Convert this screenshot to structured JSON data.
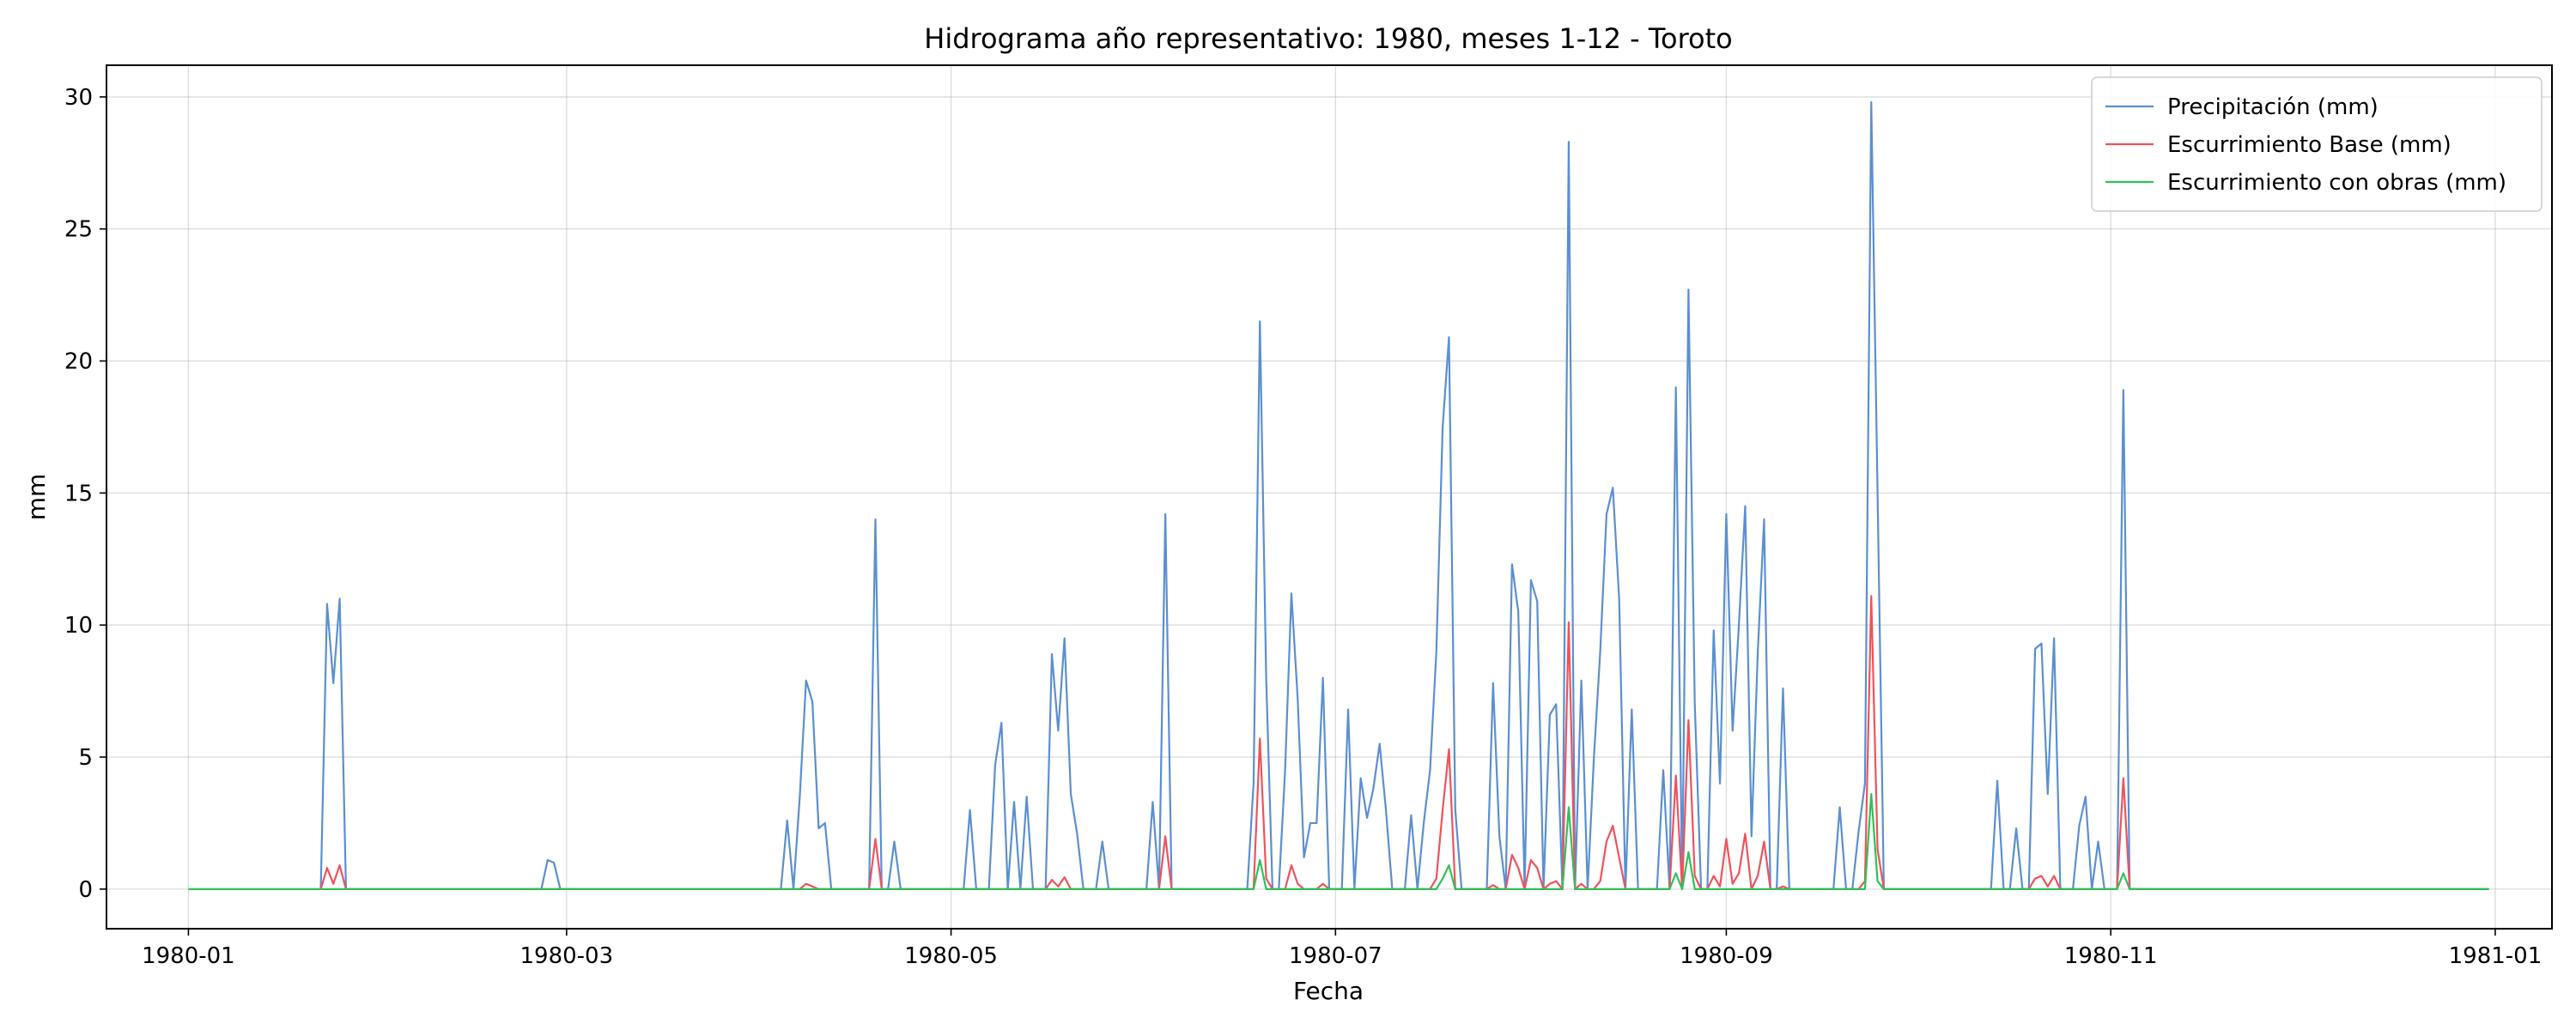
{
  "chart_data": {
    "type": "line",
    "title": "Hidrograma año representativo: 1980, meses 1-12 - Toroto",
    "xlabel": "Fecha",
    "ylabel": "mm",
    "x_domain": [
      "1980-01-01",
      "1980-12-31"
    ],
    "xlim": [
      "1979-12-19",
      "1981-01-10"
    ],
    "ylim": [
      -1.5,
      31.2
    ],
    "x_ticks": [
      "1980-01",
      "1980-03",
      "1980-05",
      "1980-07",
      "1980-09",
      "1980-11",
      "1981-01"
    ],
    "y_ticks": [
      0,
      5,
      10,
      15,
      20,
      25,
      30
    ],
    "grid": true,
    "legend_position": "upper-right",
    "series": [
      {
        "name": "Precipitación (mm)",
        "color": "#5b8fd1",
        "points": [
          [
            "1980-01-22",
            0
          ],
          [
            "1980-01-23",
            10.8
          ],
          [
            "1980-01-24",
            7.8
          ],
          [
            "1980-01-25",
            11.0
          ],
          [
            "1980-01-26",
            0
          ],
          [
            "1980-02-26",
            0
          ],
          [
            "1980-02-27",
            1.1
          ],
          [
            "1980-02-28",
            1.0
          ],
          [
            "1980-02-29",
            0
          ],
          [
            "1980-04-04",
            0
          ],
          [
            "1980-04-05",
            2.6
          ],
          [
            "1980-04-06",
            0
          ],
          [
            "1980-04-07",
            3.5
          ],
          [
            "1980-04-08",
            7.9
          ],
          [
            "1980-04-09",
            7.1
          ],
          [
            "1980-04-10",
            2.3
          ],
          [
            "1980-04-11",
            2.5
          ],
          [
            "1980-04-12",
            0
          ],
          [
            "1980-04-18",
            0
          ],
          [
            "1980-04-19",
            14.0
          ],
          [
            "1980-04-20",
            0
          ],
          [
            "1980-04-21",
            0
          ],
          [
            "1980-04-22",
            1.8
          ],
          [
            "1980-04-23",
            0
          ],
          [
            "1980-05-03",
            0
          ],
          [
            "1980-05-04",
            3.0
          ],
          [
            "1980-05-05",
            0
          ],
          [
            "1980-05-07",
            0
          ],
          [
            "1980-05-08",
            4.7
          ],
          [
            "1980-05-09",
            6.3
          ],
          [
            "1980-05-10",
            0
          ],
          [
            "1980-05-11",
            3.3
          ],
          [
            "1980-05-12",
            0
          ],
          [
            "1980-05-13",
            3.5
          ],
          [
            "1980-05-14",
            0
          ],
          [
            "1980-05-16",
            0
          ],
          [
            "1980-05-17",
            8.9
          ],
          [
            "1980-05-18",
            6.0
          ],
          [
            "1980-05-19",
            9.5
          ],
          [
            "1980-05-20",
            3.6
          ],
          [
            "1980-05-21",
            2.1
          ],
          [
            "1980-05-22",
            0
          ],
          [
            "1980-05-24",
            0
          ],
          [
            "1980-05-25",
            1.8
          ],
          [
            "1980-05-26",
            0
          ],
          [
            "1980-06-01",
            0
          ],
          [
            "1980-06-02",
            3.3
          ],
          [
            "1980-06-03",
            0
          ],
          [
            "1980-06-04",
            14.2
          ],
          [
            "1980-06-05",
            0
          ],
          [
            "1980-06-17",
            0
          ],
          [
            "1980-06-18",
            4.0
          ],
          [
            "1980-06-19",
            21.5
          ],
          [
            "1980-06-20",
            8.0
          ],
          [
            "1980-06-21",
            0
          ],
          [
            "1980-06-22",
            0
          ],
          [
            "1980-06-23",
            4.5
          ],
          [
            "1980-06-24",
            11.2
          ],
          [
            "1980-06-25",
            7.2
          ],
          [
            "1980-06-26",
            1.2
          ],
          [
            "1980-06-27",
            2.5
          ],
          [
            "1980-06-28",
            2.5
          ],
          [
            "1980-06-29",
            8.0
          ],
          [
            "1980-06-30",
            0
          ],
          [
            "1980-07-01",
            0
          ],
          [
            "1980-07-02",
            0
          ],
          [
            "1980-07-03",
            6.8
          ],
          [
            "1980-07-04",
            0
          ],
          [
            "1980-07-05",
            4.2
          ],
          [
            "1980-07-06",
            2.7
          ],
          [
            "1980-07-07",
            3.8
          ],
          [
            "1980-07-08",
            5.5
          ],
          [
            "1980-07-09",
            3.0
          ],
          [
            "1980-07-10",
            0
          ],
          [
            "1980-07-12",
            0
          ],
          [
            "1980-07-13",
            2.8
          ],
          [
            "1980-07-14",
            0
          ],
          [
            "1980-07-15",
            2.5
          ],
          [
            "1980-07-16",
            4.5
          ],
          [
            "1980-07-17",
            9.0
          ],
          [
            "1980-07-18",
            17.5
          ],
          [
            "1980-07-19",
            20.9
          ],
          [
            "1980-07-20",
            3.0
          ],
          [
            "1980-07-21",
            0
          ],
          [
            "1980-07-25",
            0
          ],
          [
            "1980-07-26",
            7.8
          ],
          [
            "1980-07-27",
            2.0
          ],
          [
            "1980-07-28",
            0
          ],
          [
            "1980-07-29",
            12.3
          ],
          [
            "1980-07-30",
            10.5
          ],
          [
            "1980-07-31",
            0
          ],
          [
            "1980-08-01",
            11.7
          ],
          [
            "1980-08-02",
            10.9
          ],
          [
            "1980-08-03",
            0
          ],
          [
            "1980-08-04",
            6.6
          ],
          [
            "1980-08-05",
            7.0
          ],
          [
            "1980-08-06",
            0
          ],
          [
            "1980-08-07",
            28.3
          ],
          [
            "1980-08-08",
            0
          ],
          [
            "1980-08-09",
            7.9
          ],
          [
            "1980-08-10",
            0
          ],
          [
            "1980-08-11",
            5.0
          ],
          [
            "1980-08-12",
            9.0
          ],
          [
            "1980-08-13",
            14.2
          ],
          [
            "1980-08-14",
            15.2
          ],
          [
            "1980-08-15",
            11.0
          ],
          [
            "1980-08-16",
            0
          ],
          [
            "1980-08-17",
            6.8
          ],
          [
            "1980-08-18",
            0
          ],
          [
            "1980-08-21",
            0
          ],
          [
            "1980-08-22",
            4.5
          ],
          [
            "1980-08-23",
            0
          ],
          [
            "1980-08-24",
            19.0
          ],
          [
            "1980-08-25",
            0
          ],
          [
            "1980-08-26",
            22.7
          ],
          [
            "1980-08-27",
            7.0
          ],
          [
            "1980-08-28",
            0
          ],
          [
            "1980-08-29",
            0
          ],
          [
            "1980-08-30",
            9.8
          ],
          [
            "1980-08-31",
            4.0
          ],
          [
            "1980-09-01",
            14.2
          ],
          [
            "1980-09-02",
            6.0
          ],
          [
            "1980-09-03",
            10.0
          ],
          [
            "1980-09-04",
            14.5
          ],
          [
            "1980-09-05",
            2.0
          ],
          [
            "1980-09-06",
            9.0
          ],
          [
            "1980-09-07",
            14.0
          ],
          [
            "1980-09-08",
            0
          ],
          [
            "1980-09-09",
            0
          ],
          [
            "1980-09-10",
            7.6
          ],
          [
            "1980-09-11",
            0
          ],
          [
            "1980-09-18",
            0
          ],
          [
            "1980-09-19",
            3.1
          ],
          [
            "1980-09-20",
            0
          ],
          [
            "1980-09-21",
            0
          ],
          [
            "1980-09-22",
            2.2
          ],
          [
            "1980-09-23",
            4.0
          ],
          [
            "1980-09-24",
            29.8
          ],
          [
            "1980-09-25",
            15.0
          ],
          [
            "1980-09-26",
            0
          ],
          [
            "1980-10-13",
            0
          ],
          [
            "1980-10-14",
            4.1
          ],
          [
            "1980-10-15",
            0
          ],
          [
            "1980-10-16",
            0
          ],
          [
            "1980-10-17",
            2.3
          ],
          [
            "1980-10-18",
            0
          ],
          [
            "1980-10-19",
            0
          ],
          [
            "1980-10-20",
            9.1
          ],
          [
            "1980-10-21",
            9.3
          ],
          [
            "1980-10-22",
            3.6
          ],
          [
            "1980-10-23",
            9.5
          ],
          [
            "1980-10-24",
            0
          ],
          [
            "1980-10-26",
            0
          ],
          [
            "1980-10-27",
            2.4
          ],
          [
            "1980-10-28",
            3.5
          ],
          [
            "1980-10-29",
            0
          ],
          [
            "1980-10-30",
            1.8
          ],
          [
            "1980-10-31",
            0
          ],
          [
            "1980-11-02",
            0
          ],
          [
            "1980-11-03",
            18.9
          ],
          [
            "1980-11-04",
            0
          ],
          [
            "1980-12-31",
            0
          ]
        ]
      },
      {
        "name": "Escurrimiento Base (mm)",
        "color": "#f0525c",
        "points": [
          [
            "1980-01-22",
            0
          ],
          [
            "1980-01-23",
            0.8
          ],
          [
            "1980-01-24",
            0.2
          ],
          [
            "1980-01-25",
            0.9
          ],
          [
            "1980-01-26",
            0
          ],
          [
            "1980-04-07",
            0
          ],
          [
            "1980-04-08",
            0.2
          ],
          [
            "1980-04-09",
            0.1
          ],
          [
            "1980-04-10",
            0
          ],
          [
            "1980-04-18",
            0
          ],
          [
            "1980-04-19",
            1.9
          ],
          [
            "1980-04-20",
            0
          ],
          [
            "1980-05-16",
            0
          ],
          [
            "1980-05-17",
            0.35
          ],
          [
            "1980-05-18",
            0.1
          ],
          [
            "1980-05-19",
            0.45
          ],
          [
            "1980-05-20",
            0
          ],
          [
            "1980-06-03",
            0
          ],
          [
            "1980-06-04",
            2.0
          ],
          [
            "1980-06-05",
            0
          ],
          [
            "1980-06-18",
            0
          ],
          [
            "1980-06-19",
            5.7
          ],
          [
            "1980-06-20",
            0.4
          ],
          [
            "1980-06-21",
            0
          ],
          [
            "1980-06-23",
            0
          ],
          [
            "1980-06-24",
            0.9
          ],
          [
            "1980-06-25",
            0.2
          ],
          [
            "1980-06-26",
            0
          ],
          [
            "1980-06-28",
            0
          ],
          [
            "1980-06-29",
            0.2
          ],
          [
            "1980-06-30",
            0
          ],
          [
            "1980-07-16",
            0
          ],
          [
            "1980-07-17",
            0.4
          ],
          [
            "1980-07-18",
            3.0
          ],
          [
            "1980-07-19",
            5.3
          ],
          [
            "1980-07-20",
            0
          ],
          [
            "1980-07-25",
            0
          ],
          [
            "1980-07-26",
            0.15
          ],
          [
            "1980-07-27",
            0
          ],
          [
            "1980-07-28",
            0
          ],
          [
            "1980-07-29",
            1.3
          ],
          [
            "1980-07-30",
            0.8
          ],
          [
            "1980-07-31",
            0
          ],
          [
            "1980-08-01",
            1.1
          ],
          [
            "1980-08-02",
            0.8
          ],
          [
            "1980-08-03",
            0
          ],
          [
            "1980-08-04",
            0.2
          ],
          [
            "1980-08-05",
            0.3
          ],
          [
            "1980-08-06",
            0
          ],
          [
            "1980-08-07",
            10.1
          ],
          [
            "1980-08-08",
            0
          ],
          [
            "1980-08-09",
            0.2
          ],
          [
            "1980-08-10",
            0
          ],
          [
            "1980-08-11",
            0
          ],
          [
            "1980-08-12",
            0.3
          ],
          [
            "1980-08-13",
            1.8
          ],
          [
            "1980-08-14",
            2.4
          ],
          [
            "1980-08-15",
            1.2
          ],
          [
            "1980-08-16",
            0
          ],
          [
            "1980-08-23",
            0
          ],
          [
            "1980-08-24",
            4.3
          ],
          [
            "1980-08-25",
            0
          ],
          [
            "1980-08-26",
            6.4
          ],
          [
            "1980-08-27",
            0.5
          ],
          [
            "1980-08-28",
            0
          ],
          [
            "1980-08-29",
            0
          ],
          [
            "1980-08-30",
            0.5
          ],
          [
            "1980-08-31",
            0.1
          ],
          [
            "1980-09-01",
            1.9
          ],
          [
            "1980-09-02",
            0.2
          ],
          [
            "1980-09-03",
            0.6
          ],
          [
            "1980-09-04",
            2.1
          ],
          [
            "1980-09-05",
            0
          ],
          [
            "1980-09-06",
            0.5
          ],
          [
            "1980-09-07",
            1.8
          ],
          [
            "1980-09-08",
            0
          ],
          [
            "1980-09-09",
            0
          ],
          [
            "1980-09-10",
            0.1
          ],
          [
            "1980-09-11",
            0
          ],
          [
            "1980-09-22",
            0
          ],
          [
            "1980-09-23",
            0.3
          ],
          [
            "1980-09-24",
            11.1
          ],
          [
            "1980-09-25",
            1.5
          ],
          [
            "1980-09-26",
            0
          ],
          [
            "1980-10-19",
            0
          ],
          [
            "1980-10-20",
            0.4
          ],
          [
            "1980-10-21",
            0.5
          ],
          [
            "1980-10-22",
            0.1
          ],
          [
            "1980-10-23",
            0.5
          ],
          [
            "1980-10-24",
            0
          ],
          [
            "1980-11-02",
            0
          ],
          [
            "1980-11-03",
            4.2
          ],
          [
            "1980-11-04",
            0
          ],
          [
            "1980-12-31",
            0
          ]
        ]
      },
      {
        "name": "Escurrimiento con obras (mm)",
        "color": "#2ec15a",
        "points": [
          [
            "1980-01-01",
            0
          ],
          [
            "1980-06-18",
            0
          ],
          [
            "1980-06-19",
            1.1
          ],
          [
            "1980-06-20",
            0
          ],
          [
            "1980-07-17",
            0
          ],
          [
            "1980-07-18",
            0.4
          ],
          [
            "1980-07-19",
            0.9
          ],
          [
            "1980-07-20",
            0
          ],
          [
            "1980-08-06",
            0
          ],
          [
            "1980-08-07",
            3.1
          ],
          [
            "1980-08-08",
            0
          ],
          [
            "1980-08-23",
            0
          ],
          [
            "1980-08-24",
            0.6
          ],
          [
            "1980-08-25",
            0
          ],
          [
            "1980-08-26",
            1.4
          ],
          [
            "1980-08-27",
            0
          ],
          [
            "1980-09-23",
            0
          ],
          [
            "1980-09-24",
            3.6
          ],
          [
            "1980-09-25",
            0.3
          ],
          [
            "1980-09-26",
            0
          ],
          [
            "1980-11-02",
            0
          ],
          [
            "1980-11-03",
            0.6
          ],
          [
            "1980-11-04",
            0
          ],
          [
            "1980-12-31",
            0
          ]
        ]
      }
    ]
  }
}
